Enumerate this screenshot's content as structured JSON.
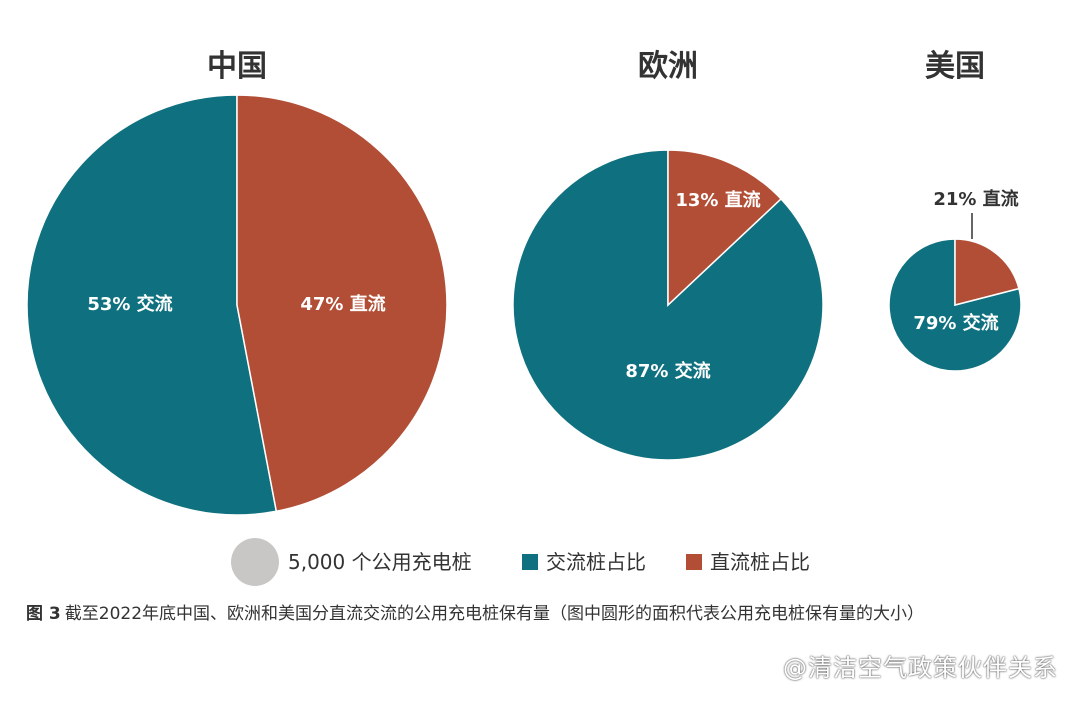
{
  "chart_data": [
    {
      "type": "pie",
      "title": "中国",
      "slices": [
        {
          "name": "交流",
          "value": 53,
          "label": "53% 交流",
          "color": "#0f717f"
        },
        {
          "name": "直流",
          "value": 47,
          "label": "47% 直流",
          "color": "#b24e36"
        }
      ]
    },
    {
      "type": "pie",
      "title": "欧洲",
      "slices": [
        {
          "name": "交流",
          "value": 87,
          "label": "87% 交流",
          "color": "#0f717f"
        },
        {
          "name": "直流",
          "value": 13,
          "label": "13% 直流",
          "color": "#b24e36"
        }
      ]
    },
    {
      "type": "pie",
      "title": "美国",
      "slices": [
        {
          "name": "交流",
          "value": 79,
          "label": "79% 交流",
          "color": "#0f717f"
        },
        {
          "name": "直流",
          "value": 21,
          "label": "21% 直流",
          "color": "#b24e36"
        }
      ]
    }
  ],
  "legend": {
    "placement": "bottom-center",
    "items": [
      {
        "label": "5,000 个公用充电桩",
        "color": "#c8c7c5",
        "shape": "circle"
      },
      {
        "label": "交流桩占比",
        "color": "#0f717f",
        "shape": "square"
      },
      {
        "label": "直流桩占比",
        "color": "#b24e36",
        "shape": "square"
      }
    ]
  },
  "caption": {
    "figure_number": "图 3",
    "text": "截至2022年底中国、欧洲和美国分直流交流的公用充电桩保有量（图中圆形的面积代表公用充电桩保有量的大小）"
  },
  "watermark": "@清洁空气政策伙伴关系"
}
